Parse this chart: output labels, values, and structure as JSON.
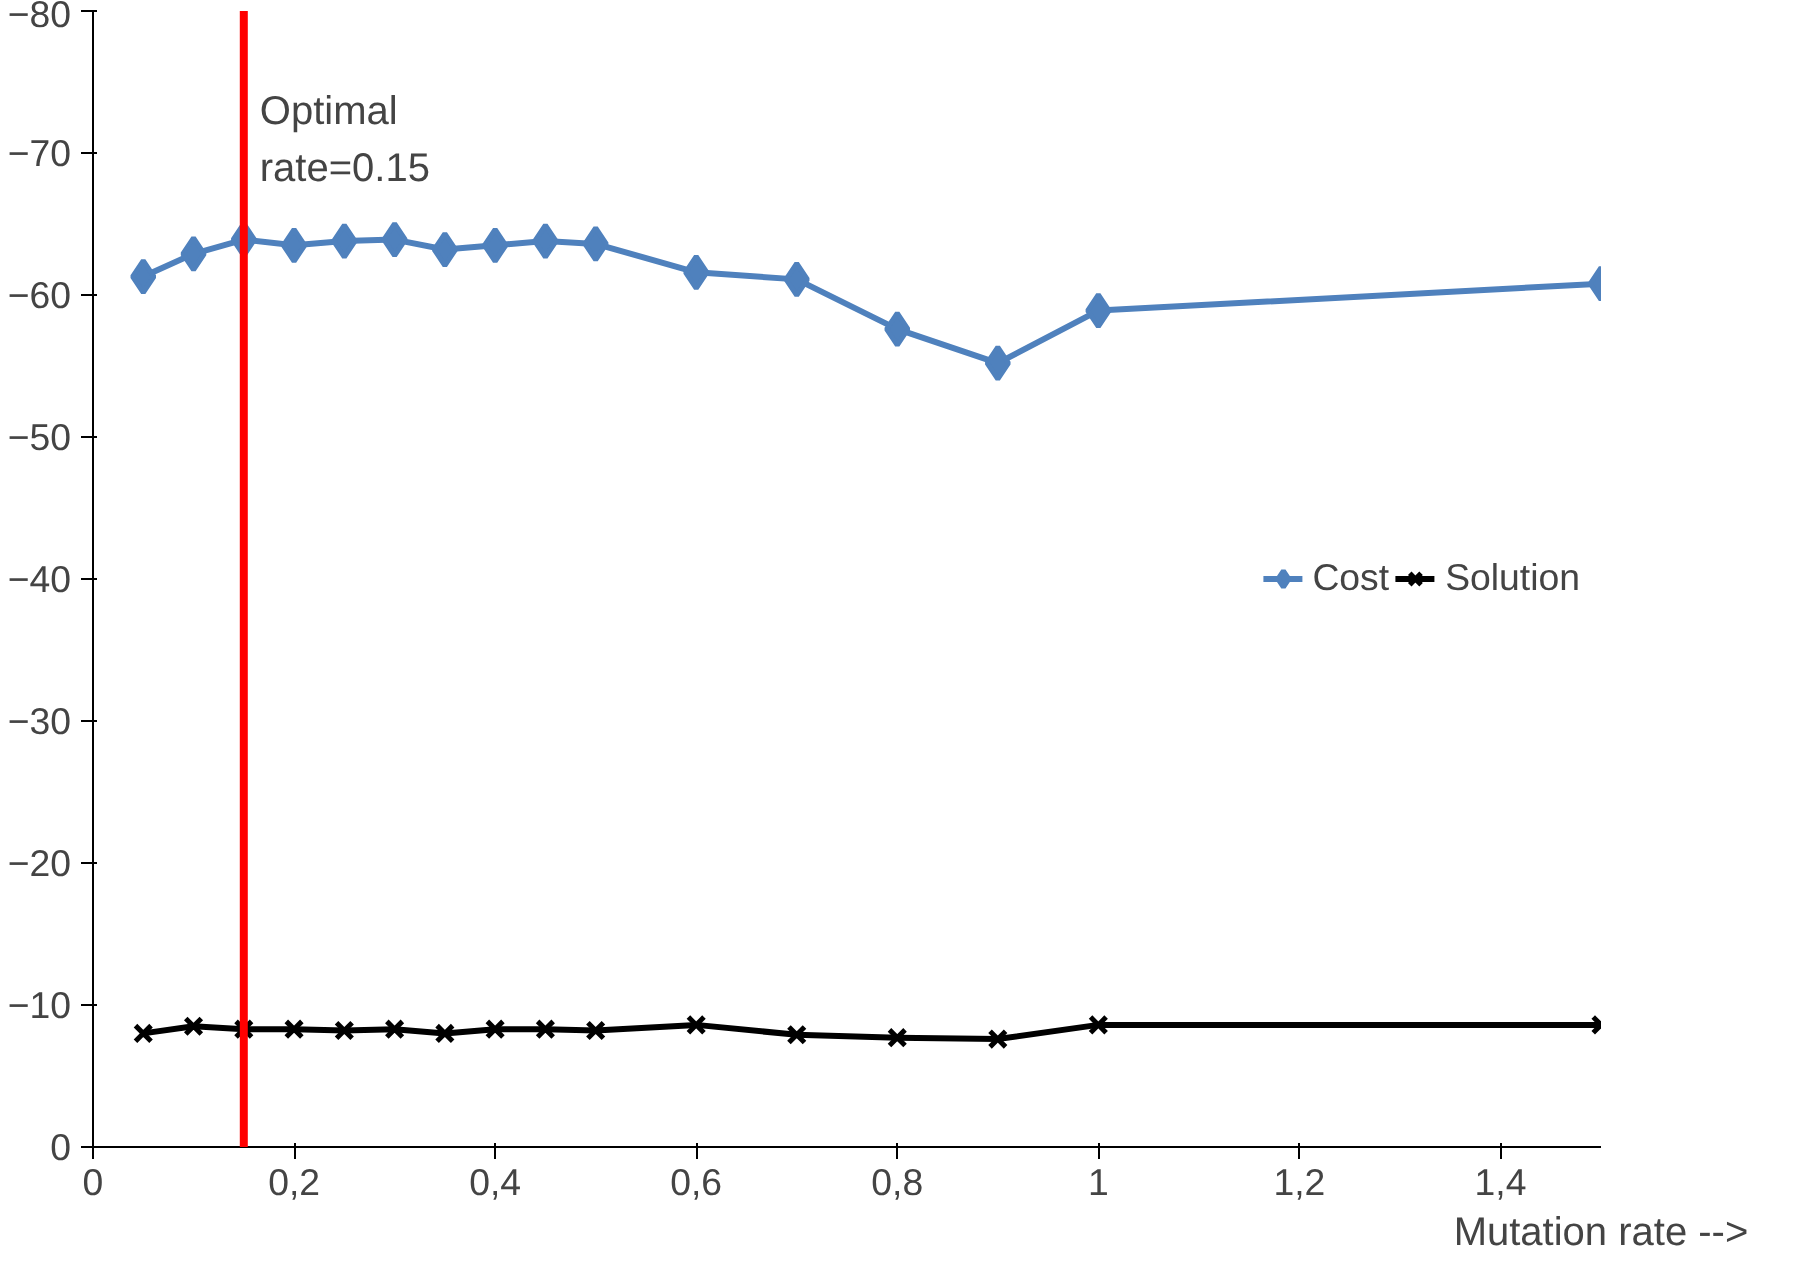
{
  "chart_data": {
    "type": "line",
    "xlabel": "Mutation rate -->",
    "x": [
      0.05,
      0.1,
      0.15,
      0.2,
      0.25,
      0.3,
      0.35,
      0.4,
      0.45,
      0.5,
      0.6,
      0.7,
      0.8,
      0.9,
      1.0,
      1.5
    ],
    "series": [
      {
        "name": "Cost",
        "color": "#4f81bd",
        "marker": "diamond",
        "values": [
          -61.3,
          -62.9,
          -63.9,
          -63.5,
          -63.8,
          -63.9,
          -63.2,
          -63.5,
          -63.8,
          -63.6,
          -61.6,
          -61.1,
          -57.6,
          -55.2,
          -58.9,
          -60.8
        ]
      },
      {
        "name": "Solution",
        "color": "#000000",
        "marker": "cross",
        "values": [
          -8.0,
          -8.5,
          -8.3,
          -8.3,
          -8.2,
          -8.3,
          -8.0,
          -8.3,
          -8.3,
          -8.2,
          -8.6,
          -7.9,
          -7.7,
          -7.6,
          -8.6,
          -8.6
        ]
      }
    ],
    "xlim": [
      0,
      1.5
    ],
    "ylim": [
      0,
      -80
    ],
    "xticks": [
      0,
      {
        "value": 0.2,
        "label": "0,2"
      },
      {
        "value": 0.4,
        "label": "0,4"
      },
      {
        "value": 0.6,
        "label": "0,6"
      },
      {
        "value": 0.8,
        "label": "0,8"
      },
      1,
      {
        "value": 1.2,
        "label": "1,2"
      },
      {
        "value": 1.4,
        "label": "1,4"
      }
    ],
    "yticks": [
      0,
      -10,
      -20,
      -30,
      -40,
      -50,
      -60,
      -70,
      -80
    ],
    "ref_lines": [
      {
        "axis": "x",
        "value": 0.15,
        "label": "Optimal rate=0.15",
        "color": "#ff0000"
      }
    ],
    "grid": false,
    "legend": "right",
    "line_style": "solid"
  }
}
